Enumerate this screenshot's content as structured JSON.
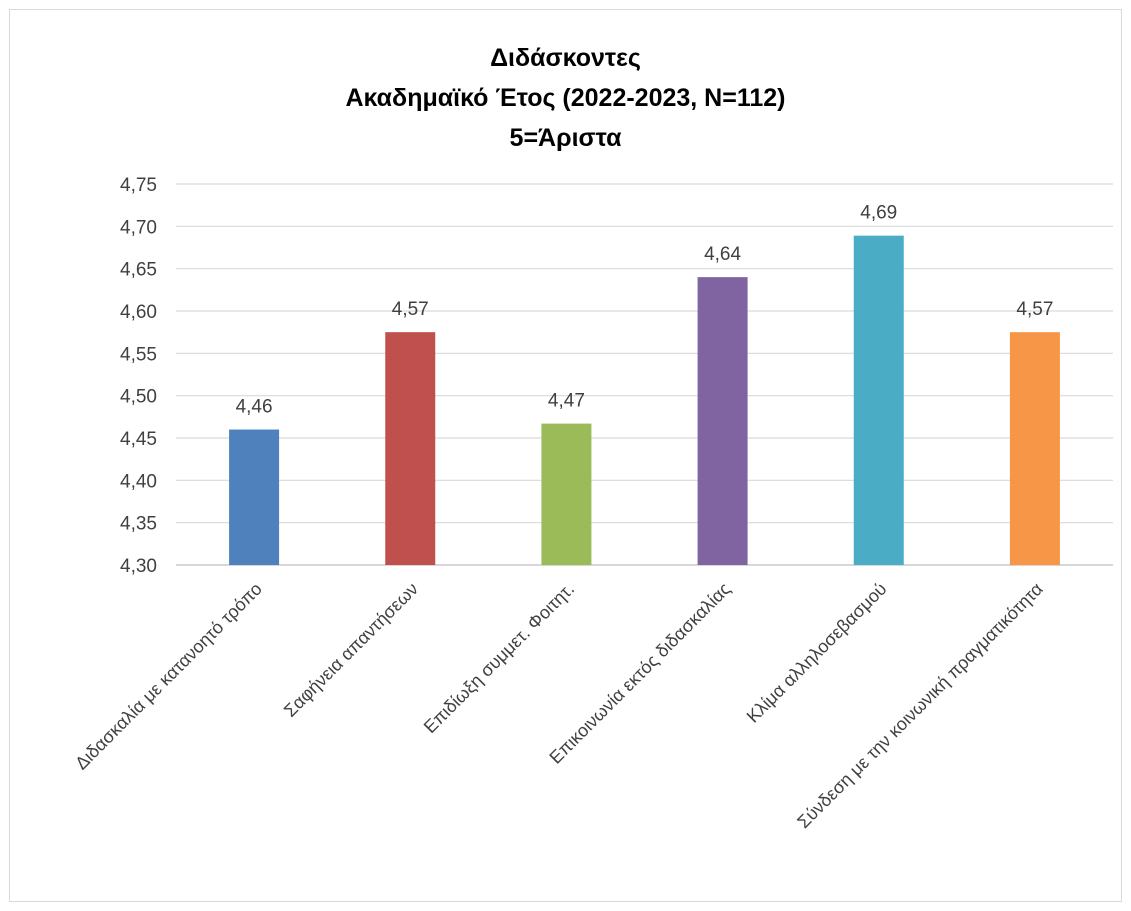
{
  "chart_data": {
    "type": "bar",
    "title": [
      "Διδάσκοντες",
      "Ακαδημαϊκό Έτος (2022-2023, Ν=112)",
      "5=Άριστα"
    ],
    "categories": [
      "Διδασκαλία με κατανοητό τρόπο",
      "Σαφήνεια απαντήσεων",
      "Επιδίωξη συμμετ. Φοιτητ.",
      "Επικοινωνία εκτός διδασκαλίας",
      "Κλίμα αλληλοσεβασμού",
      "Σύνδεση με την κοινωνική πραγματικότητα"
    ],
    "values": [
      4.46,
      4.575,
      4.467,
      4.64,
      4.689,
      4.575
    ],
    "data_labels": [
      "4,46",
      "4,57",
      "4,47",
      "4,64",
      "4,69",
      "4,57"
    ],
    "colors": [
      "#4f81bd",
      "#c0504d",
      "#9bbb59",
      "#8064a2",
      "#4bacc6",
      "#f79646"
    ],
    "ylim": [
      4.3,
      4.75
    ],
    "yticks": [
      4.3,
      4.35,
      4.4,
      4.45,
      4.5,
      4.55,
      4.6,
      4.65,
      4.7,
      4.75
    ],
    "ytick_labels": [
      "4,30",
      "4,35",
      "4,40",
      "4,45",
      "4,50",
      "4,55",
      "4,60",
      "4,65",
      "4,70",
      "4,75"
    ],
    "xlabel": "",
    "ylabel": "",
    "grid": true,
    "gridline_color": "#d9d9d9",
    "legend": false
  }
}
